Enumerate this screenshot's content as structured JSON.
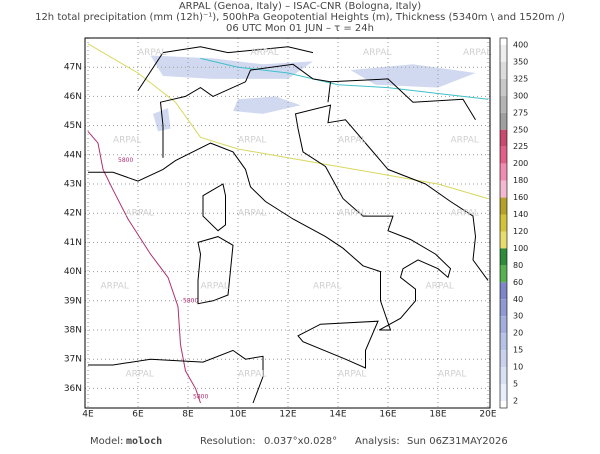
{
  "header": {
    "line1": "ARPAL (Genoa, Italy)  –  ISAC-CNR (Bologna, Italy)",
    "line2": "12h total precipitation (mm (12h)⁻¹), 500hPa Geopotential Heights (m), Thickness (5340m \\ and 1520m /)",
    "line3": "06 UTC Mon 01 JUN  –  τ = 24h"
  },
  "map": {
    "lon_labels": [
      "4E",
      "6E",
      "8E",
      "10E",
      "12E",
      "14E",
      "16E",
      "18E",
      "20E"
    ],
    "lat_labels": [
      "47N",
      "46N",
      "45N",
      "44N",
      "43N",
      "42N",
      "41N",
      "40N",
      "39N",
      "38N",
      "37N",
      "36N"
    ],
    "watermark": "ARPAL",
    "contour_label": "5800"
  },
  "colorbar": {
    "levels": [
      400,
      350,
      325,
      300,
      275,
      250,
      225,
      200,
      180,
      160,
      140,
      120,
      100,
      80,
      60,
      40,
      30,
      20,
      15,
      10,
      5,
      2
    ],
    "colors": [
      "#eeeeee",
      "#dcdcdc",
      "#c8c8c8",
      "#b4b4b4",
      "#a0a0a0",
      "#c84a6e",
      "#e0608a",
      "#f08cb0",
      "#f5b8cf",
      "#b4a02a",
      "#d2c23c",
      "#e8dc6e",
      "#2e8b3a",
      "#58b050",
      "#7d86c8",
      "#909ad2",
      "#a4aedc",
      "#b8c2e6",
      "#c8d2ee",
      "#d8e0f4",
      "#e8eefa"
    ]
  },
  "footer": {
    "model_label": "Model:",
    "model": "moloch",
    "resolution_label": "Resolution:",
    "resolution": "0.037°x0.028°",
    "analysis_label": "Analysis:",
    "analysis": "Sun 06Z31MAY2026"
  }
}
